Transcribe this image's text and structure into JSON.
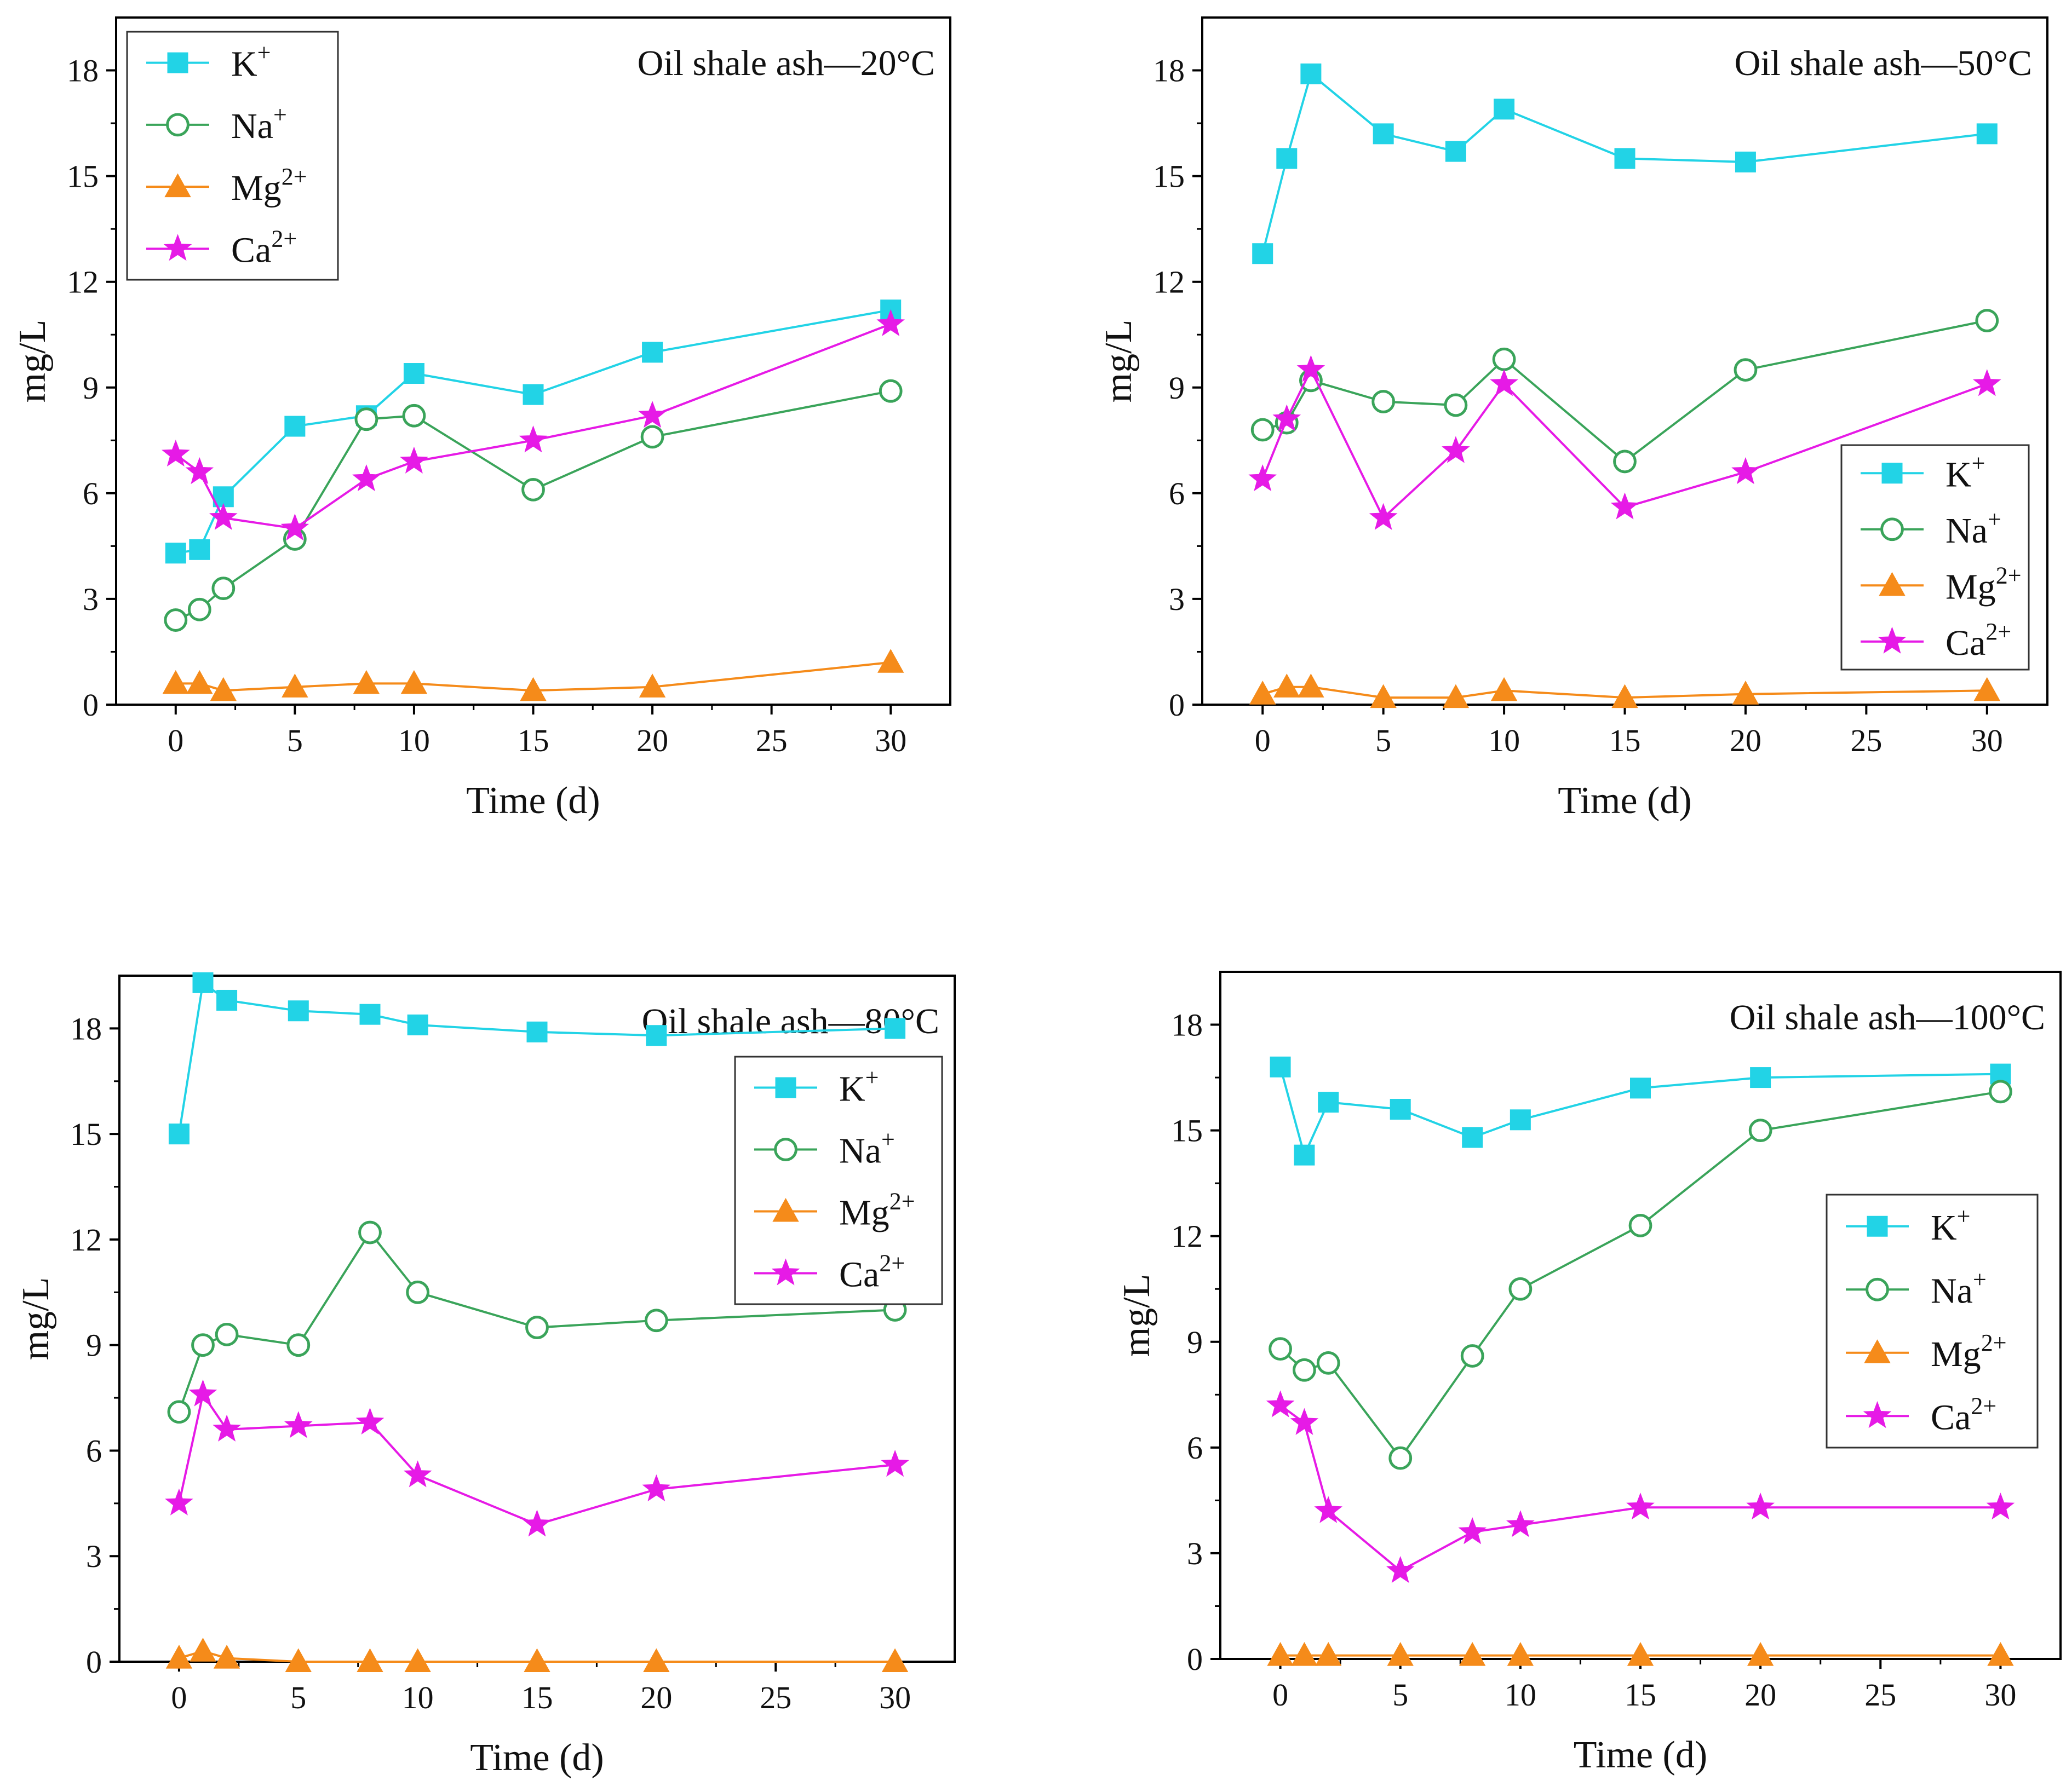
{
  "figure": {
    "xlabel": "Time (d)",
    "ylabel": "mg/L",
    "x_ticks": [
      0,
      5,
      10,
      15,
      20,
      25,
      30
    ],
    "y_ticks": [
      0,
      3,
      6,
      9,
      12,
      15,
      18
    ]
  },
  "series_style": {
    "K": {
      "legend_base": "K",
      "legend_sup": "+",
      "color": "#22d3e6",
      "marker": "square",
      "fill": "#22d3e6"
    },
    "Na": {
      "legend_base": "Na",
      "legend_sup": "+",
      "color": "#3aa45a",
      "marker": "circle",
      "fill": "#ffffff"
    },
    "Mg": {
      "legend_base": "Mg",
      "legend_sup": "2+",
      "color": "#f58b1a",
      "marker": "triangle",
      "fill": "#f58b1a"
    },
    "Ca": {
      "legend_base": "Ca",
      "legend_sup": "2+",
      "color": "#e61ae6",
      "marker": "star",
      "fill": "#e61ae6"
    }
  },
  "chart_data": [
    {
      "type": "line",
      "title": "Oil shale ash—20°C",
      "xlabel": "Time (d)",
      "ylabel": "mg/L",
      "xlim": [
        -2.5,
        32.5
      ],
      "ylim": [
        0,
        19.5
      ],
      "legend": "top-left",
      "x": [
        0,
        1,
        2,
        5,
        8,
        10,
        15,
        20,
        30
      ],
      "series": [
        {
          "name": "K+",
          "key": "K",
          "values": [
            4.3,
            4.4,
            5.9,
            7.9,
            8.2,
            9.4,
            8.8,
            10.0,
            11.2
          ]
        },
        {
          "name": "Na+",
          "key": "Na",
          "values": [
            2.4,
            2.7,
            3.3,
            4.7,
            8.1,
            8.2,
            6.1,
            7.6,
            8.9
          ]
        },
        {
          "name": "Mg2+",
          "key": "Mg",
          "values": [
            0.6,
            0.6,
            0.4,
            0.5,
            0.6,
            0.6,
            0.4,
            0.5,
            1.2
          ]
        },
        {
          "name": "Ca2+",
          "key": "Ca",
          "values": [
            7.1,
            6.6,
            5.3,
            5.0,
            6.4,
            6.9,
            7.5,
            8.2,
            10.8
          ]
        }
      ]
    },
    {
      "type": "line",
      "title": "Oil shale ash—50°C",
      "xlabel": "Time (d)",
      "ylabel": "mg/L",
      "xlim": [
        -2.5,
        32.5
      ],
      "ylim": [
        0,
        19.5
      ],
      "legend": "center-right",
      "x": [
        0,
        1,
        2,
        5,
        8,
        10,
        15,
        20,
        30
      ],
      "series": [
        {
          "name": "K+",
          "key": "K",
          "values": [
            12.8,
            15.5,
            17.9,
            16.2,
            15.7,
            16.9,
            15.5,
            15.4,
            16.2
          ]
        },
        {
          "name": "Na+",
          "key": "Na",
          "values": [
            7.8,
            8.0,
            9.2,
            8.6,
            8.5,
            9.8,
            6.9,
            9.5,
            10.9
          ]
        },
        {
          "name": "Mg2+",
          "key": "Mg",
          "values": [
            0.3,
            0.5,
            0.5,
            0.2,
            0.2,
            0.4,
            0.2,
            0.3,
            0.4
          ]
        },
        {
          "name": "Ca2+",
          "key": "Ca",
          "values": [
            6.4,
            8.1,
            9.5,
            5.3,
            7.2,
            9.1,
            5.6,
            6.6,
            9.1
          ]
        }
      ]
    },
    {
      "type": "line",
      "title": "Oil shale ash—80°C",
      "xlabel": "Time (d)",
      "ylabel": "mg/L",
      "xlim": [
        -2.5,
        32.5
      ],
      "ylim": [
        0,
        19.5
      ],
      "legend": "top-right",
      "x": [
        0,
        1,
        2,
        5,
        8,
        10,
        15,
        20,
        30
      ],
      "series": [
        {
          "name": "K+",
          "key": "K",
          "values": [
            15.0,
            19.3,
            18.8,
            18.5,
            18.4,
            18.1,
            17.9,
            17.8,
            18.0
          ]
        },
        {
          "name": "Na+",
          "key": "Na",
          "values": [
            7.1,
            9.0,
            9.3,
            9.0,
            12.2,
            10.5,
            9.5,
            9.7,
            10.0
          ]
        },
        {
          "name": "Mg2+",
          "key": "Mg",
          "values": [
            0.1,
            0.3,
            0.1,
            0.0,
            0.0,
            0.0,
            0.0,
            0.0,
            0.0
          ]
        },
        {
          "name": "Ca2+",
          "key": "Ca",
          "values": [
            4.5,
            7.6,
            6.6,
            6.7,
            6.8,
            5.3,
            3.9,
            4.9,
            5.6
          ]
        }
      ]
    },
    {
      "type": "line",
      "title": "Oil shale ash—100°C",
      "xlabel": "Time (d)",
      "ylabel": "mg/L",
      "xlim": [
        -2.5,
        32.5
      ],
      "ylim": [
        0,
        19.5
      ],
      "legend": "center-right",
      "x": [
        0,
        1,
        2,
        5,
        8,
        10,
        15,
        20,
        30
      ],
      "series": [
        {
          "name": "K+",
          "key": "K",
          "values": [
            16.8,
            14.3,
            15.8,
            15.6,
            14.8,
            15.3,
            16.2,
            16.5,
            16.6
          ]
        },
        {
          "name": "Na+",
          "key": "Na",
          "values": [
            8.8,
            8.2,
            8.4,
            5.7,
            8.6,
            10.5,
            12.3,
            15.0,
            16.1
          ]
        },
        {
          "name": "Mg2+",
          "key": "Mg",
          "values": [
            0.1,
            0.1,
            0.1,
            0.1,
            0.1,
            0.1,
            0.1,
            0.1,
            0.1
          ]
        },
        {
          "name": "Ca2+",
          "key": "Ca",
          "values": [
            7.2,
            6.7,
            4.2,
            2.5,
            3.6,
            3.8,
            4.3,
            4.3,
            4.3
          ]
        }
      ]
    }
  ]
}
